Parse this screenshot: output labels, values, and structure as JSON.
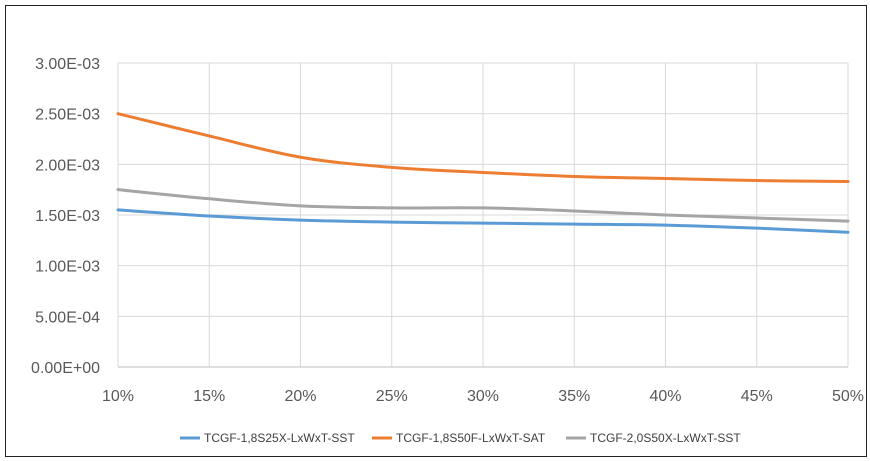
{
  "chart_data": {
    "type": "line",
    "x": [
      "10%",
      "15%",
      "20%",
      "25%",
      "30%",
      "35%",
      "40%",
      "45%",
      "50%"
    ],
    "x_values": [
      10,
      15,
      20,
      25,
      30,
      35,
      40,
      45,
      50
    ],
    "xlim": [
      10,
      50
    ],
    "ylim": [
      0,
      0.003
    ],
    "y_ticks": [
      {
        "value": 0,
        "label": "0.00E+00"
      },
      {
        "value": 0.0005,
        "label": "5.00E-04"
      },
      {
        "value": 0.001,
        "label": "1.00E-03"
      },
      {
        "value": 0.0015,
        "label": "1.50E-03"
      },
      {
        "value": 0.002,
        "label": "2.00E-03"
      },
      {
        "value": 0.0025,
        "label": "2.50E-03"
      },
      {
        "value": 0.003,
        "label": "3.00E-03"
      }
    ],
    "grid": "vertical and horizontal",
    "legend_position": "bottom",
    "series": [
      {
        "name": "TCGF-1,8S25X-LxWxT-SST",
        "color": "#5B9BD5",
        "values": [
          0.00155,
          0.00149,
          0.00145,
          0.00143,
          0.00142,
          0.00141,
          0.0014,
          0.00137,
          0.00133
        ]
      },
      {
        "name": "TCGF-1,8S50F-LxWxT-SAT",
        "color": "#ED7D31",
        "values": [
          0.0025,
          0.00228,
          0.00207,
          0.00197,
          0.00192,
          0.00188,
          0.00186,
          0.00184,
          0.00183
        ]
      },
      {
        "name": "TCGF-2,0S50X-LxWxT-SST",
        "color": "#A5A5A5",
        "values": [
          0.00175,
          0.00166,
          0.00159,
          0.00157,
          0.00157,
          0.00154,
          0.0015,
          0.00147,
          0.00144
        ]
      }
    ]
  }
}
